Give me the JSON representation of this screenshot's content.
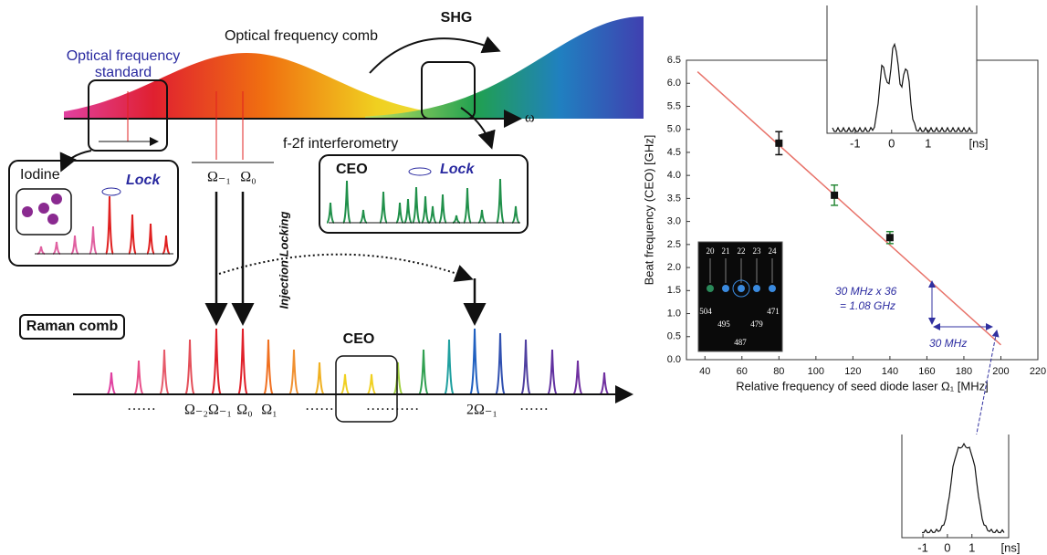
{
  "chart_data": {
    "type": "scatter",
    "xlabel": "Relative frequency of seed diode laser Ω₁ [MHz]",
    "ylabel": "Beat frequency (CEO) [GHz]",
    "xlim": [
      30,
      220
    ],
    "xticks": [
      40,
      60,
      80,
      100,
      120,
      140,
      160,
      180,
      200,
      220
    ],
    "ylim": [
      0,
      6.5
    ],
    "yticks": [
      {
        "value": 0,
        "label": "0.0"
      },
      0.5,
      {
        "value": 1,
        "label": "1.0"
      },
      1.5,
      {
        "value": 2,
        "label": "2.0"
      },
      2.5,
      {
        "value": 3,
        "label": "3.0"
      },
      3.5,
      {
        "value": 4,
        "label": "4.0"
      },
      4.5,
      {
        "value": 5,
        "label": "5.0"
      },
      5.5,
      {
        "value": 6,
        "label": "6.0"
      },
      6.5
    ],
    "points": {
      "x": [
        80,
        110,
        140
      ],
      "y": [
        4.7,
        3.57,
        2.65
      ],
      "error": [
        0.25,
        0.22,
        0.13
      ],
      "color": "#111111",
      "error_color": "#2a8a3a"
    },
    "fit": {
      "x": [
        36,
        200
      ],
      "y": [
        6.25,
        0.32
      ],
      "color": "#e8736a"
    },
    "annotations": [
      "30 MHz x 36",
      "= 1.08 GHz",
      "30 MHz"
    ]
  },
  "insets": {
    "top": {
      "xlim": [
        -1.77,
        2.33
      ],
      "xticks": [
        -1,
        0,
        1
      ],
      "unit": "[ns]"
    },
    "bottom": {
      "xlim": [
        -1.86,
        2.5
      ],
      "xticks": [
        -1,
        0,
        1
      ],
      "unit": "[ns]"
    },
    "camera": {
      "top": [
        "20",
        "21",
        "22",
        "23",
        "24"
      ],
      "bottom": [
        "504",
        "495",
        "487",
        "479",
        "471"
      ]
    }
  },
  "diagram": {
    "comb_title": "Optical frequency comb",
    "shg": "SHG",
    "standard": [
      "Optical frequency",
      "standard"
    ],
    "omega": "ω",
    "f2f": "f-2f interferometry",
    "iodine": "Iodine",
    "lock_left": "Lock",
    "ceo_box": "CEO",
    "lock_right": "Lock",
    "seed_labels": [
      "Ω₋₁",
      "Ω₀"
    ],
    "injection": "Injection Locking",
    "raman": "Raman comb",
    "ceo": "CEO",
    "raman_labels": [
      "······",
      "Ω₋₂",
      "Ω₋₁",
      "Ω₀",
      "Ω₁",
      "······",
      "···········",
      "2Ω₋₁",
      "······"
    ]
  }
}
